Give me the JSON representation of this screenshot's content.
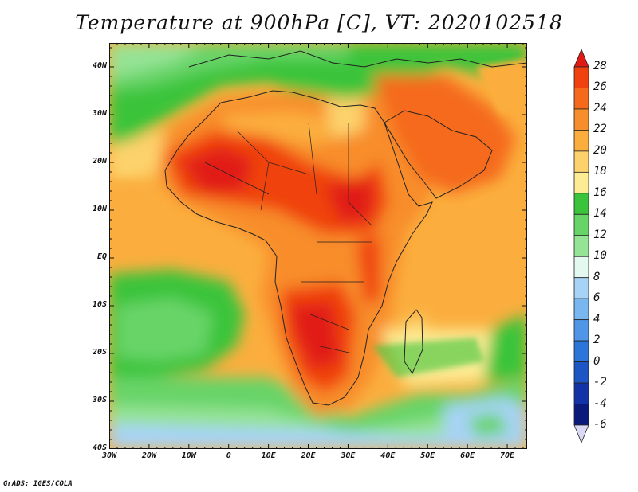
{
  "title": "Temperature at 900hPa [C], VT: 2020102518",
  "credit": "GrADS: IGES/COLA",
  "map": {
    "projection": "latlon",
    "lon_range": [
      -30,
      75
    ],
    "lat_range": [
      -40,
      45
    ],
    "lat_labels": [
      "40N",
      "30N",
      "20N",
      "10N",
      "EQ",
      "10S",
      "20S",
      "30S",
      "40S"
    ],
    "lat_values": [
      40,
      30,
      20,
      10,
      0,
      -10,
      -20,
      -30,
      -40
    ],
    "lon_labels": [
      "30W",
      "20W",
      "10W",
      "0",
      "10E",
      "20E",
      "30E",
      "40E",
      "50E",
      "60E",
      "70E"
    ],
    "lon_values": [
      -30,
      -20,
      -10,
      0,
      10,
      20,
      30,
      40,
      50,
      60,
      70
    ]
  },
  "colorbar": {
    "labels": [
      "28",
      "26",
      "24",
      "22",
      "20",
      "18",
      "16",
      "14",
      "12",
      "10",
      "8",
      "6",
      "4",
      "2",
      "0",
      "-2",
      "-4",
      "-6"
    ],
    "colors": [
      "#e11b14",
      "#f0420f",
      "#f56a1a",
      "#f88d2b",
      "#fbae3e",
      "#fdd26c",
      "#fcec94",
      "#3bc43b",
      "#67d467",
      "#95e395",
      "#e3f9ef",
      "#a7d3f6",
      "#7ab6ef",
      "#4f97e6",
      "#2b76d8",
      "#1d55c4",
      "#1432a8",
      "#0b1a7a",
      "#d9d9f5"
    ]
  }
}
